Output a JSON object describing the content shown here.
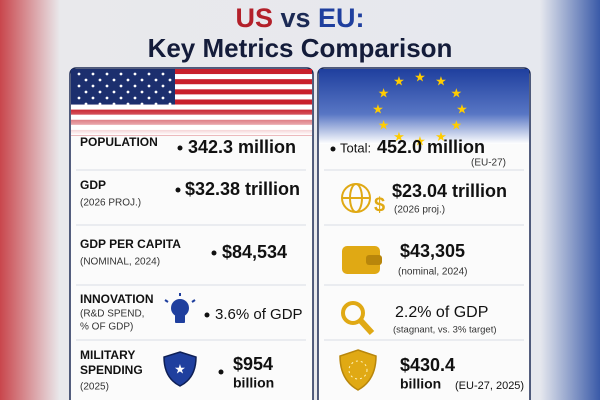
{
  "header": {
    "title_us": "US",
    "title_vs": "vs",
    "title_eu": "EU:",
    "subtitle": "Key Metrics Comparison"
  },
  "us": {
    "rows": [
      {
        "label": "POPULATION",
        "value": "342.3 million"
      },
      {
        "label": "GDP",
        "note": "(2026 PROJ.)",
        "value": "$32.38 trillion"
      },
      {
        "label": "GDP PER CAPITA",
        "note": "(NOMINAL, 2024)",
        "value": "$84,534"
      },
      {
        "label": "INNOVATION",
        "note": "(R&D SPEND,",
        "note2": "% OF GDP)",
        "value": "3.6% of GDP"
      },
      {
        "label": "MILITARY",
        "label2": "SPENDING",
        "note": "(2025)",
        "value": "$954",
        "value2": "billion"
      }
    ]
  },
  "eu": {
    "rows": [
      {
        "prefix": "Total:",
        "value": "452.0 million",
        "note": "(EU-27)"
      },
      {
        "value": "$23.04 trillion",
        "note": "(2026 proj.)"
      },
      {
        "value": "$43,305",
        "note": "(nominal, 2024)"
      },
      {
        "value": "2.2% of GDP",
        "note": "(stagnant, vs. 3% target)"
      },
      {
        "value": "$430.4",
        "value2": "billion",
        "note": "(EU-27, 2025)"
      }
    ]
  }
}
